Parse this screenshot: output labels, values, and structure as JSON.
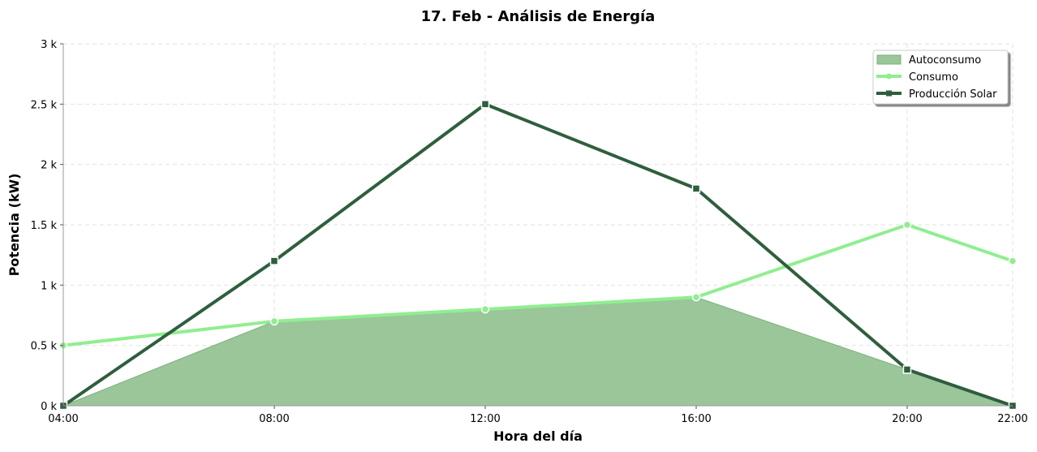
{
  "chart_data": {
    "type": "line",
    "title": "17. Feb - Análisis de Energía",
    "xlabel": "Hora del día",
    "ylabel": "Potencia (kW)",
    "x": [
      "04:00",
      "08:00",
      "12:00",
      "16:00",
      "20:00",
      "22:00"
    ],
    "x_hours": [
      4,
      8,
      12,
      16,
      20,
      22
    ],
    "xlim": [
      4,
      22
    ],
    "ylim": [
      0,
      3000
    ],
    "y_ticks": [
      0,
      500,
      1000,
      1500,
      2000,
      2500,
      3000
    ],
    "y_tick_labels": [
      "0 k",
      "0.5 k",
      "1 k",
      "1.5 k",
      "2 k",
      "2.5 k",
      "3 k"
    ],
    "grid": true,
    "legend_position": "top-right",
    "series": [
      {
        "name": "Autoconsumo",
        "kind": "area",
        "color": "#9ac69a",
        "values": [
          0,
          700,
          800,
          900,
          300,
          0
        ]
      },
      {
        "name": "Consumo",
        "kind": "line",
        "marker": "circle",
        "color": "#90ee90",
        "values": [
          500,
          700,
          800,
          900,
          1500,
          1200
        ]
      },
      {
        "name": "Producción Solar",
        "kind": "line",
        "marker": "square",
        "color": "#2f5e3e",
        "values": [
          0,
          1200,
          2500,
          1800,
          300,
          0
        ]
      }
    ]
  }
}
